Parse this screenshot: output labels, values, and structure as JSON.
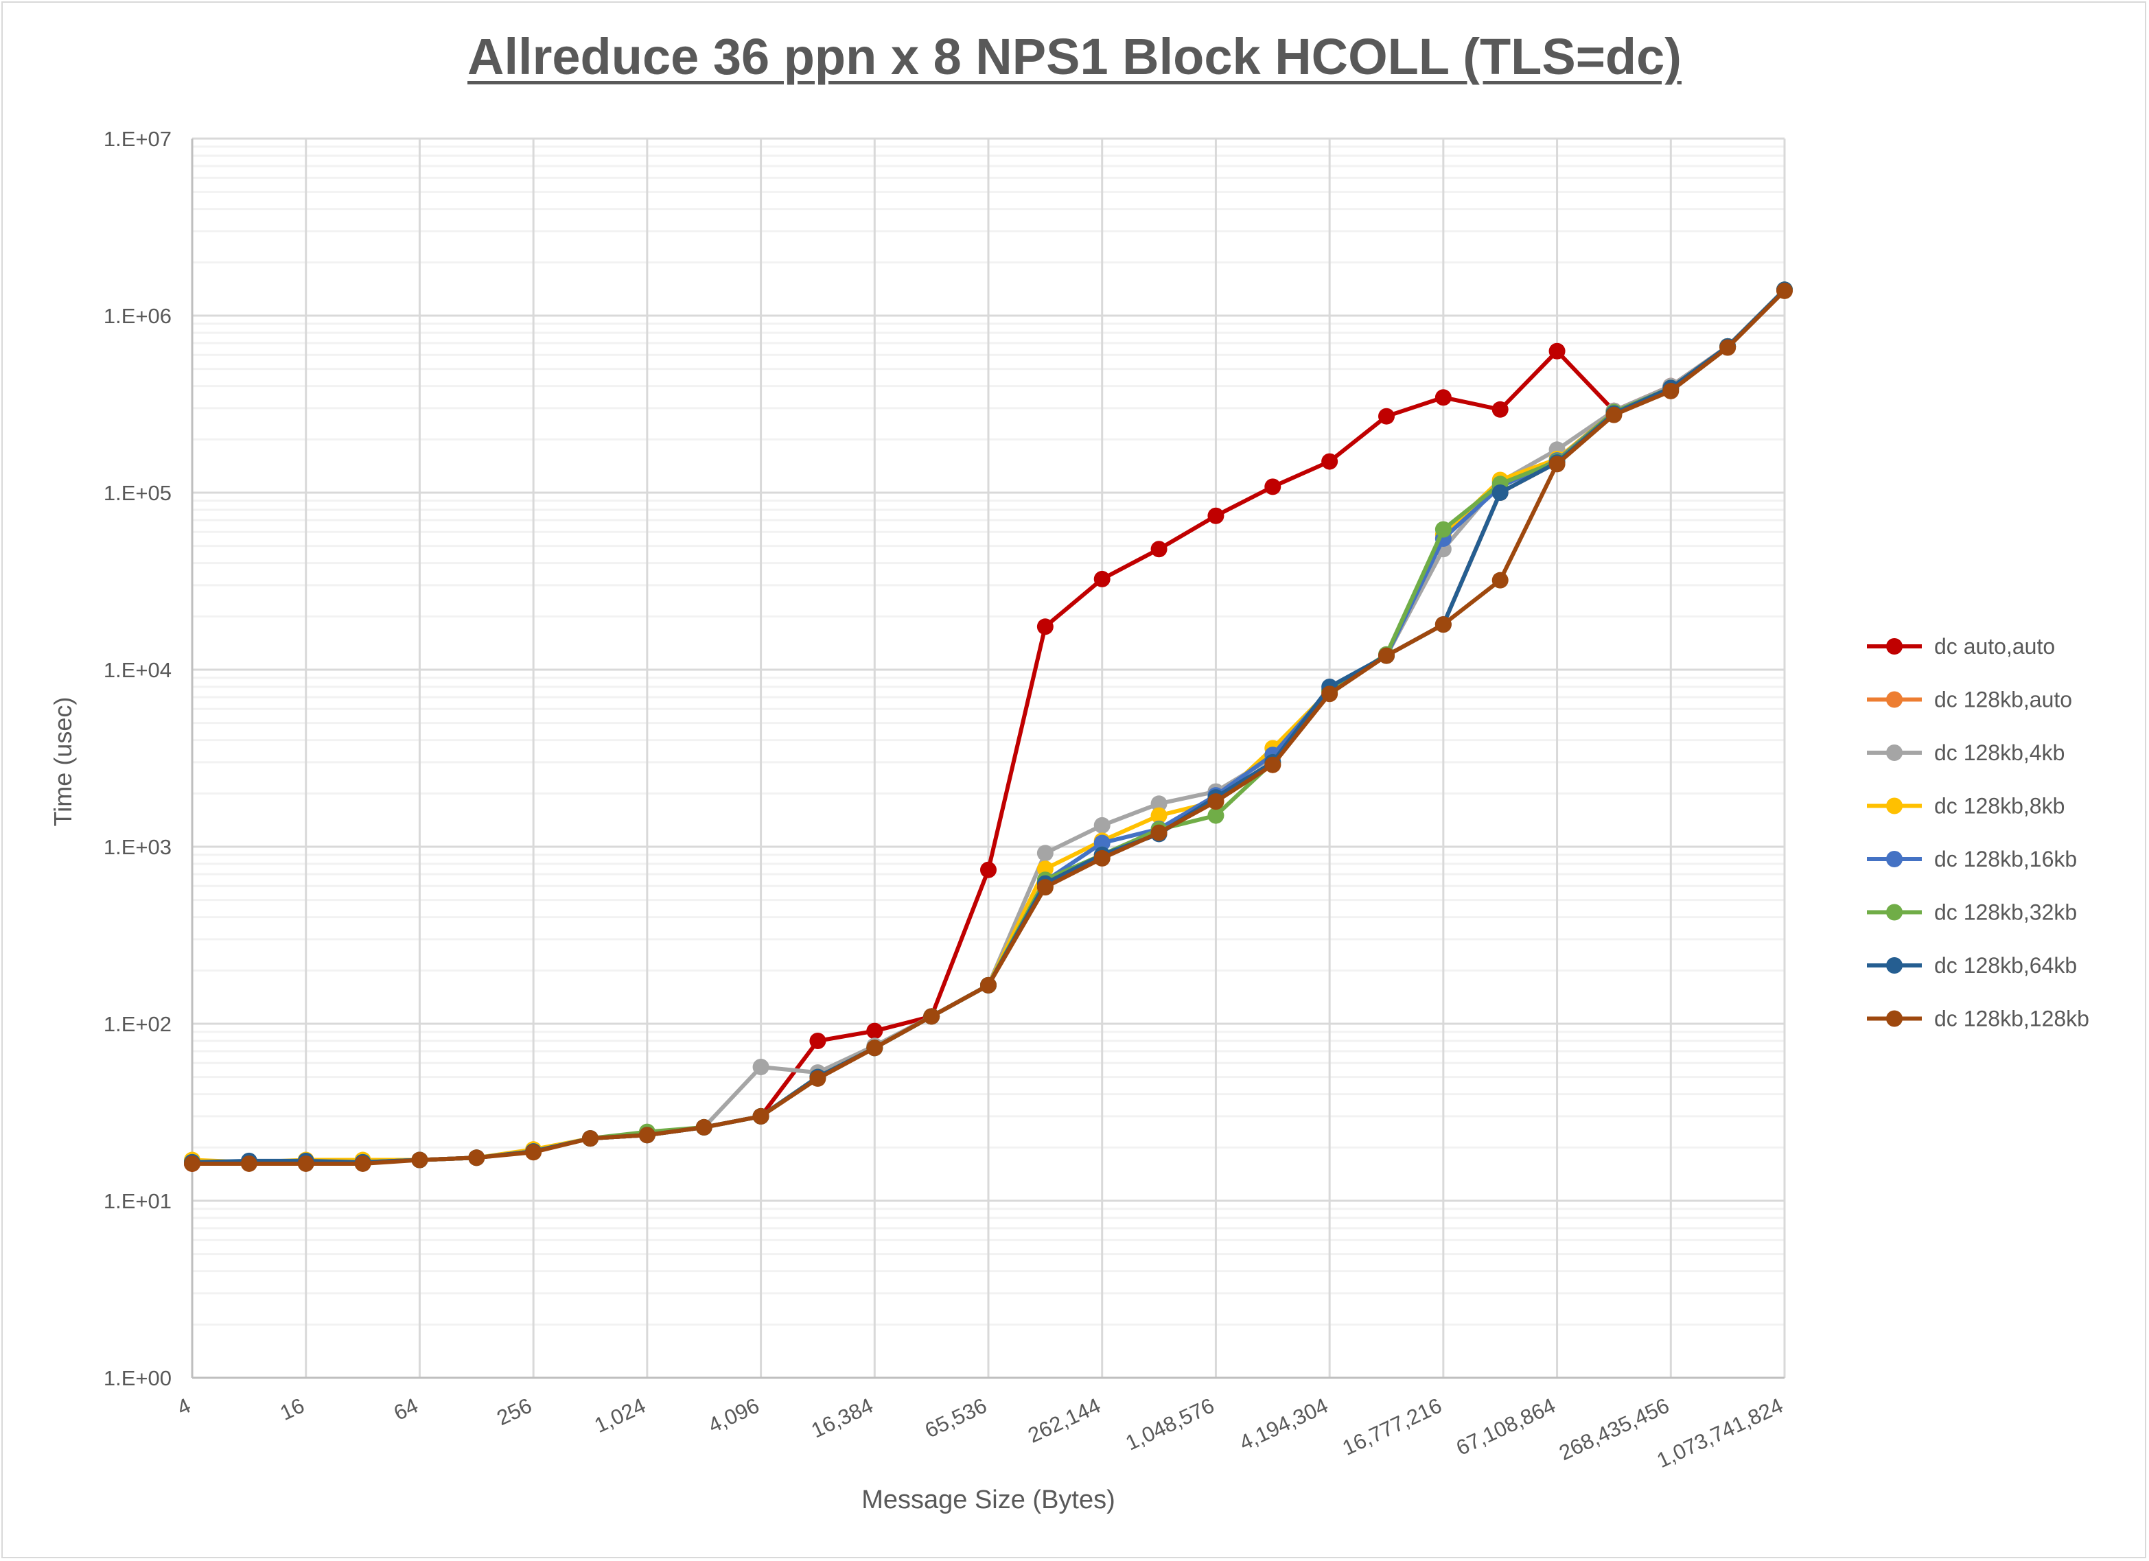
{
  "chart_data": {
    "type": "line",
    "title": "Allreduce 36 ppn x 8 NPS1 Block HCOLL (TLS=dc)",
    "xlabel": "Message Size (Bytes)",
    "ylabel": "Time (usec)",
    "x_scale": "log2",
    "y_scale": "log10",
    "ylim": [
      1,
      10000000
    ],
    "grid": true,
    "legend": "right",
    "x_tick_labels": [
      "4",
      "16",
      "64",
      "256",
      "1,024",
      "4,096",
      "16,384",
      "65,536",
      "262,144",
      "1,048,576",
      "4,194,304",
      "16,777,216",
      "67,108,864",
      "268,435,456",
      "1,073,741,824"
    ],
    "y_tick_labels": [
      "1.E+00",
      "1.E+01",
      "1.E+02",
      "1.E+03",
      "1.E+04",
      "1.E+05",
      "1.E+06",
      "1.E+07"
    ],
    "x": [
      4,
      8,
      16,
      32,
      64,
      128,
      256,
      512,
      1024,
      2048,
      4096,
      8192,
      16384,
      32768,
      65536,
      131072,
      262144,
      524288,
      1048576,
      2097152,
      4194304,
      8388608,
      16777216,
      33554432,
      67108864,
      134217728,
      268435456,
      536870912,
      1073741824
    ],
    "series": [
      {
        "name": "dc auto,auto",
        "color": "#c00000",
        "values": [
          16.2,
          16.5,
          16.5,
          16.5,
          17,
          17.5,
          19,
          22.5,
          23.5,
          26,
          30,
          80,
          91,
          110,
          740,
          17500,
          32500,
          48000,
          74000,
          108000,
          150000,
          270000,
          345000,
          295000,
          630000,
          290000,
          400000,
          670000,
          1400000
        ]
      },
      {
        "name": "dc 128kb,auto",
        "color": "#ed7d31",
        "values": [
          16.5,
          16.5,
          16.5,
          16.5,
          17,
          17.5,
          19,
          22.5,
          23.5,
          26,
          30,
          50,
          73,
          110,
          165,
          600,
          870,
          1200,
          1800,
          2900,
          7500,
          12000,
          18000,
          100000,
          148000,
          280000,
          385000,
          670000,
          1400000
        ]
      },
      {
        "name": "dc 128kb,4kb",
        "color": "#a5a5a5",
        "values": [
          16.5,
          16.5,
          16.5,
          16.5,
          17,
          17.5,
          19,
          22.5,
          23.5,
          26,
          57,
          53,
          75,
          110,
          165,
          920,
          1320,
          1750,
          2050,
          3200,
          7600,
          12000,
          48000,
          115000,
          175000,
          290000,
          400000,
          670000,
          1400000
        ]
      },
      {
        "name": "dc 128kb,8kb",
        "color": "#ffc000",
        "values": [
          17,
          16.5,
          17,
          17,
          17,
          17.5,
          19.5,
          22.5,
          23.5,
          26,
          30,
          50,
          73,
          110,
          165,
          750,
          1080,
          1500,
          1800,
          3600,
          7600,
          12000,
          58000,
          118000,
          155000,
          285000,
          390000,
          670000,
          1400000
        ]
      },
      {
        "name": "dc 128kb,16kb",
        "color": "#4472c4",
        "values": [
          16.5,
          16.5,
          16.5,
          16.5,
          17,
          17.5,
          19,
          22.5,
          23.5,
          26,
          30,
          50,
          73,
          110,
          165,
          640,
          1050,
          1260,
          1950,
          3300,
          7700,
          12000,
          55000,
          108000,
          152000,
          285000,
          390000,
          670000,
          1400000
        ]
      },
      {
        "name": "dc 128kb,32kb",
        "color": "#70ad47",
        "values": [
          16.5,
          16.5,
          16.5,
          16.5,
          17,
          17.5,
          19,
          22.5,
          24.5,
          26,
          30,
          50,
          73,
          110,
          165,
          650,
          900,
          1250,
          1500,
          3000,
          7600,
          12200,
          62000,
          112000,
          150000,
          285000,
          390000,
          670000,
          1400000
        ]
      },
      {
        "name": "dc 128kb,64kb",
        "color": "#255e91",
        "values": [
          16.5,
          16.8,
          16.8,
          16.5,
          17,
          17.5,
          19,
          22.5,
          23.5,
          26,
          30,
          50,
          73,
          110,
          165,
          620,
          900,
          1180,
          1900,
          3000,
          8000,
          12000,
          18000,
          100000,
          148000,
          280000,
          390000,
          670000,
          1400000
        ]
      },
      {
        "name": "dc 128kb,128kb",
        "color": "#9e480e",
        "values": [
          16.2,
          16.2,
          16.2,
          16.2,
          17,
          17.5,
          18.8,
          22.5,
          23.5,
          26,
          30,
          49,
          73,
          110,
          165,
          590,
          860,
          1200,
          1800,
          2900,
          7300,
          12000,
          18000,
          32000,
          145000,
          275000,
          375000,
          660000,
          1380000
        ]
      }
    ]
  }
}
